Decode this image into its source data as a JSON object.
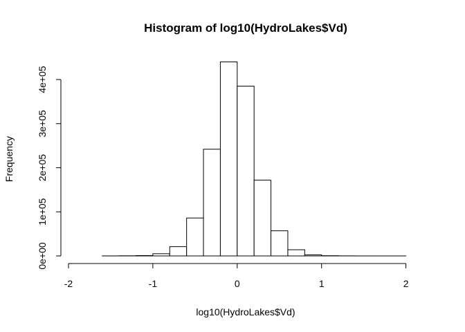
{
  "chart_data": {
    "type": "bar",
    "title": "Histogram of log10(HydroLakes$Vd)",
    "xlabel": "log10(HydroLakes$Vd)",
    "ylabel": "Frequency",
    "bin_width": 0.2,
    "bin_edges": [
      -2.0,
      -1.8,
      -1.6,
      -1.4,
      -1.2,
      -1.0,
      -0.8,
      -0.6,
      -0.4,
      -0.2,
      0.0,
      0.2,
      0.4,
      0.6,
      0.8,
      1.0,
      1.2,
      1.4,
      1.6,
      1.8,
      2.0,
      2.2
    ],
    "values": [
      0,
      0,
      100,
      300,
      800,
      5000,
      21000,
      86000,
      242000,
      440000,
      385000,
      172000,
      57000,
      14000,
      2500,
      500,
      150,
      50,
      20,
      10,
      0
    ],
    "xlim": [
      -2.0,
      2.2
    ],
    "ylim": [
      0,
      440000
    ],
    "x_ticks": [
      -2,
      -1,
      0,
      1,
      2
    ],
    "x_tick_labels": [
      "-2",
      "-1",
      "0",
      "1",
      "2"
    ],
    "y_ticks": [
      0,
      100000,
      200000,
      300000,
      400000
    ],
    "y_tick_labels": [
      "0e+00",
      "1e+05",
      "2e+05",
      "3e+05",
      "4e+05"
    ],
    "grid": false,
    "legend": "none"
  }
}
